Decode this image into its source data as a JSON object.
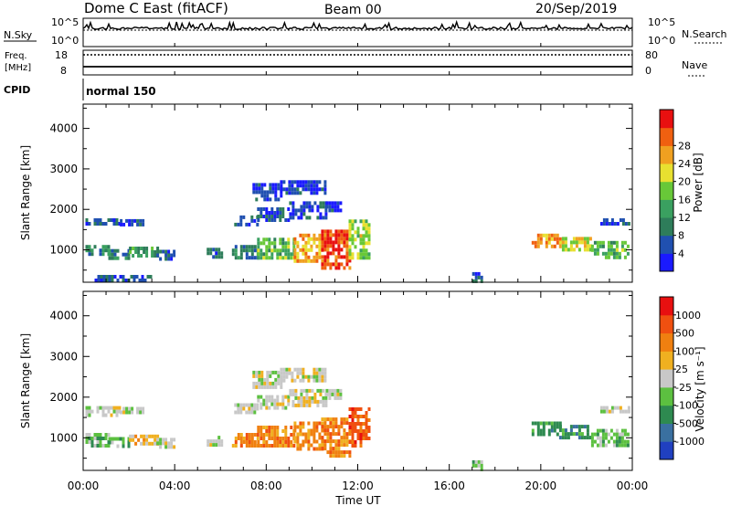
{
  "header": {
    "station": "Dome C East (fitACF)",
    "beam": "Beam 00",
    "date": "20/Sep/2019"
  },
  "panels": {
    "nsky": {
      "label": "N.Sky",
      "tick_top": "10^5",
      "tick_bottom": "10^0",
      "right_label": "N.Search",
      "right_tick_top": "10^5",
      "right_tick_bottom": "10^0"
    },
    "freq": {
      "label_line1": "Freq.",
      "label_line2": "[MHz]",
      "tick_top": "18",
      "tick_bottom": "8",
      "right_label": "Nave",
      "right_tick_top": "80",
      "right_tick_bottom": "0"
    },
    "cpid": {
      "label": "CPID",
      "value": "normal 150"
    }
  },
  "chart_data": [
    {
      "type": "heatmap",
      "name": "power",
      "ylabel": "Slant Range [km]",
      "ylim": [
        200,
        4600
      ],
      "yticks": [
        1000,
        2000,
        3000,
        4000
      ],
      "xlim_hours": [
        0,
        24
      ],
      "colorbar": {
        "label": "Power [dB]",
        "ticks": [
          "4",
          "8",
          "12",
          "16",
          "20",
          "24",
          "28"
        ],
        "colors": [
          "#1a1aff",
          "#2050b0",
          "#2e7d5a",
          "#3aa060",
          "#68c838",
          "#e8e030",
          "#f0a020",
          "#f06010",
          "#e81010"
        ]
      },
      "regions": [
        {
          "t": [
            0.1,
            1.6
          ],
          "r": [
            1600,
            1780
          ],
          "level": 0.12
        },
        {
          "t": [
            1.6,
            2.6
          ],
          "r": [
            1650,
            1760
          ],
          "level": 0.1
        },
        {
          "t": [
            0.1,
            1.1
          ],
          "r": [
            850,
            1120
          ],
          "level": 0.3
        },
        {
          "t": [
            1.1,
            2.0
          ],
          "r": [
            820,
            1020
          ],
          "level": 0.22
        },
        {
          "t": [
            2.0,
            3.2
          ],
          "r": [
            860,
            1080
          ],
          "level": 0.35
        },
        {
          "t": [
            3.2,
            4.0
          ],
          "r": [
            760,
            1000
          ],
          "level": 0.18
        },
        {
          "t": [
            6.6,
            7.6
          ],
          "r": [
            1650,
            1850
          ],
          "level": 0.1
        },
        {
          "t": [
            7.6,
            9.0
          ],
          "r": [
            1750,
            2050
          ],
          "level": 0.1
        },
        {
          "t": [
            9.0,
            10.6
          ],
          "r": [
            1800,
            2200
          ],
          "level": 0.1
        },
        {
          "t": [
            10.6,
            11.2
          ],
          "r": [
            1950,
            2200
          ],
          "level": 0.08
        },
        {
          "t": [
            7.4,
            8.6
          ],
          "r": [
            2250,
            2650
          ],
          "level": 0.06
        },
        {
          "t": [
            8.6,
            10.6
          ],
          "r": [
            2400,
            2720
          ],
          "level": 0.05
        },
        {
          "t": [
            6.5,
            7.6
          ],
          "r": [
            820,
            1120
          ],
          "level": 0.25
        },
        {
          "t": [
            7.6,
            9.2
          ],
          "r": [
            780,
            1300
          ],
          "level": 0.45
        },
        {
          "t": [
            9.2,
            10.4
          ],
          "r": [
            700,
            1400
          ],
          "level": 0.72
        },
        {
          "t": [
            10.4,
            11.6
          ],
          "r": [
            580,
            1500
          ],
          "level": 0.92
        },
        {
          "t": [
            11.6,
            12.5
          ],
          "r": [
            800,
            1750
          ],
          "level": 0.55
        },
        {
          "t": [
            19.6,
            20.8
          ],
          "r": [
            1050,
            1400
          ],
          "level": 0.78
        },
        {
          "t": [
            20.8,
            22.2
          ],
          "r": [
            980,
            1320
          ],
          "level": 0.6
        },
        {
          "t": [
            22.2,
            23.8
          ],
          "r": [
            830,
            1220
          ],
          "level": 0.42
        },
        {
          "t": [
            22.6,
            23.9
          ],
          "r": [
            1620,
            1780
          ],
          "level": 0.1
        },
        {
          "t": [
            17.0,
            17.4
          ],
          "r": [
            250,
            450
          ],
          "level": 0.15
        },
        {
          "t": [
            0.5,
            3.0
          ],
          "r": [
            250,
            380
          ],
          "level": 0.12
        },
        {
          "t": [
            5.4,
            6.0
          ],
          "r": [
            850,
            1050
          ],
          "level": 0.15
        }
      ]
    },
    {
      "type": "heatmap",
      "name": "velocity",
      "ylabel": "Slant Range [km]",
      "ylim": [
        200,
        4600
      ],
      "yticks": [
        1000,
        2000,
        3000,
        4000
      ],
      "xlim_hours": [
        0,
        24
      ],
      "xticks": [
        "00:00",
        "04:00",
        "08:00",
        "12:00",
        "16:00",
        "20:00",
        "00:00"
      ],
      "xlabel": "Time UT",
      "colorbar": {
        "label": "Velocity [m s⁻¹]",
        "ticks": [
          "1000",
          "500",
          "100",
          "25",
          "-25",
          "-100",
          "-500",
          "-1000"
        ],
        "colors": [
          "#2040c0",
          "#3a70a0",
          "#2e8a50",
          "#5cc040",
          "#c8c8c8",
          "#f0b020",
          "#f08010",
          "#f05010",
          "#e81010"
        ]
      },
      "regions": [
        {
          "t": [
            0.1,
            1.6
          ],
          "r": [
            1600,
            1780
          ],
          "level": 4
        },
        {
          "t": [
            1.6,
            2.6
          ],
          "r": [
            1650,
            1760
          ],
          "level": 4
        },
        {
          "t": [
            0.1,
            1.1
          ],
          "r": [
            850,
            1120
          ],
          "level": 3
        },
        {
          "t": [
            1.1,
            2.0
          ],
          "r": [
            820,
            1020
          ],
          "level": 3
        },
        {
          "t": [
            2.0,
            3.2
          ],
          "r": [
            860,
            1080
          ],
          "level": 5
        },
        {
          "t": [
            3.2,
            4.0
          ],
          "r": [
            760,
            1000
          ],
          "level": 4
        },
        {
          "t": [
            6.6,
            7.6
          ],
          "r": [
            1650,
            1850
          ],
          "level": 4
        },
        {
          "t": [
            7.6,
            9.0
          ],
          "r": [
            1750,
            2050
          ],
          "level": 4
        },
        {
          "t": [
            9.0,
            10.6
          ],
          "r": [
            1800,
            2200
          ],
          "level": 4
        },
        {
          "t": [
            10.6,
            11.2
          ],
          "r": [
            1950,
            2200
          ],
          "level": 4
        },
        {
          "t": [
            7.4,
            8.6
          ],
          "r": [
            2250,
            2650
          ],
          "level": 4
        },
        {
          "t": [
            8.6,
            10.6
          ],
          "r": [
            2400,
            2720
          ],
          "level": 4
        },
        {
          "t": [
            6.5,
            7.6
          ],
          "r": [
            820,
            1120
          ],
          "level": 6
        },
        {
          "t": [
            7.6,
            9.2
          ],
          "r": [
            780,
            1300
          ],
          "level": 6
        },
        {
          "t": [
            9.2,
            10.4
          ],
          "r": [
            700,
            1400
          ],
          "level": 6
        },
        {
          "t": [
            10.4,
            11.6
          ],
          "r": [
            580,
            1500
          ],
          "level": 6
        },
        {
          "t": [
            11.6,
            12.5
          ],
          "r": [
            800,
            1750
          ],
          "level": 7
        },
        {
          "t": [
            19.6,
            20.8
          ],
          "r": [
            1050,
            1400
          ],
          "level": 2
        },
        {
          "t": [
            20.8,
            22.2
          ],
          "r": [
            980,
            1320
          ],
          "level": 2
        },
        {
          "t": [
            22.2,
            23.8
          ],
          "r": [
            830,
            1220
          ],
          "level": 3
        },
        {
          "t": [
            22.6,
            23.9
          ],
          "r": [
            1620,
            1780
          ],
          "level": 4
        },
        {
          "t": [
            17.0,
            17.4
          ],
          "r": [
            250,
            450
          ],
          "level": 3
        },
        {
          "t": [
            5.4,
            6.0
          ],
          "r": [
            850,
            1050
          ],
          "level": 4
        }
      ]
    }
  ]
}
